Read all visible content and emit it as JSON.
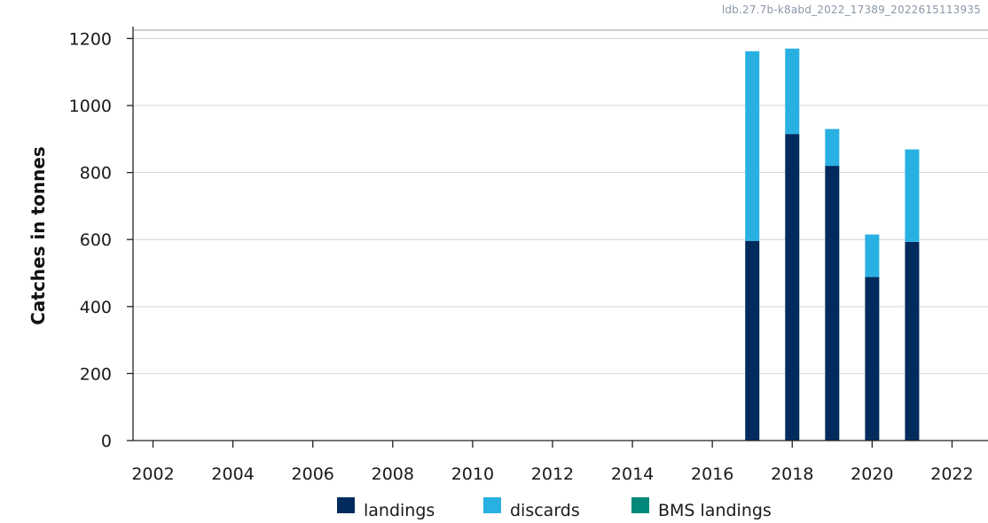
{
  "watermark": "ldb.27.7b-k8abd_2022_17389_2022615113935",
  "chart_data": {
    "type": "bar",
    "stacked": true,
    "ylabel": "Catches in tonnes",
    "xlabel": "",
    "xlim": [
      2001.5,
      2022.9
    ],
    "ylim": [
      0,
      1225
    ],
    "x_ticks": [
      2002,
      2004,
      2006,
      2008,
      2010,
      2012,
      2014,
      2016,
      2018,
      2020,
      2022
    ],
    "y_ticks": [
      0,
      200,
      400,
      600,
      800,
      1000,
      1200
    ],
    "grid": "horizontal",
    "legend_position": "bottom",
    "x": [
      2017,
      2018,
      2019,
      2020,
      2021
    ],
    "series": [
      {
        "name": "landings",
        "color": "#002b5c",
        "values": [
          596,
          915,
          820,
          488,
          593
        ]
      },
      {
        "name": "discards",
        "color": "#29b0e3",
        "values": [
          566,
          255,
          110,
          127,
          276
        ]
      },
      {
        "name": "BMS landings",
        "color": "#00897b",
        "values": [
          0,
          0,
          0,
          0,
          0
        ]
      }
    ]
  }
}
